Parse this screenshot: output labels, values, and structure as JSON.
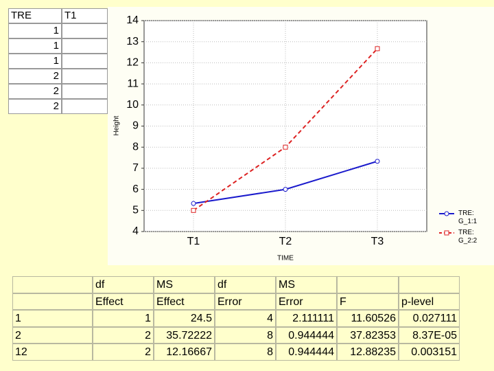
{
  "chart_data": {
    "type": "line",
    "categories": [
      "T1",
      "T2",
      "T3"
    ],
    "series": [
      {
        "name": "TRE: G_1:1",
        "color": "#1a1acc",
        "dash": false,
        "marker": "circle",
        "values": [
          5.33,
          6,
          7.33
        ]
      },
      {
        "name": "TRE: G_2:2",
        "color": "#dd2222",
        "dash": true,
        "marker": "square",
        "values": [
          5,
          8,
          12.67
        ]
      }
    ],
    "xlabel": "TIME",
    "ylabel": "Height",
    "ylim": [
      4,
      14
    ],
    "yticks": [
      4,
      5,
      6,
      7,
      8,
      9,
      10,
      11,
      12,
      13,
      14
    ],
    "grid": true,
    "legend": "right"
  },
  "left_table": {
    "header": [
      "TRE",
      "T1"
    ],
    "rows": [
      "1",
      "1",
      "1",
      "2",
      "2",
      "2"
    ]
  },
  "stats_table": {
    "header_top": [
      "df",
      "MS",
      "df",
      "MS"
    ],
    "header_bottom": [
      "Effect",
      "Effect",
      "Error",
      "Error",
      "F",
      "p-level"
    ],
    "rows": [
      {
        "label": "1",
        "cells": [
          "1",
          "24.5",
          "4",
          "2.111111",
          "11.60526",
          "0.027111"
        ]
      },
      {
        "label": "2",
        "cells": [
          "2",
          "35.72222",
          "8",
          "0.944444",
          "37.82353",
          "8.37E-05"
        ]
      },
      {
        "label": "12",
        "cells": [
          "2",
          "12.16667",
          "8",
          "0.944444",
          "12.88235",
          "0.003151"
        ]
      }
    ]
  }
}
